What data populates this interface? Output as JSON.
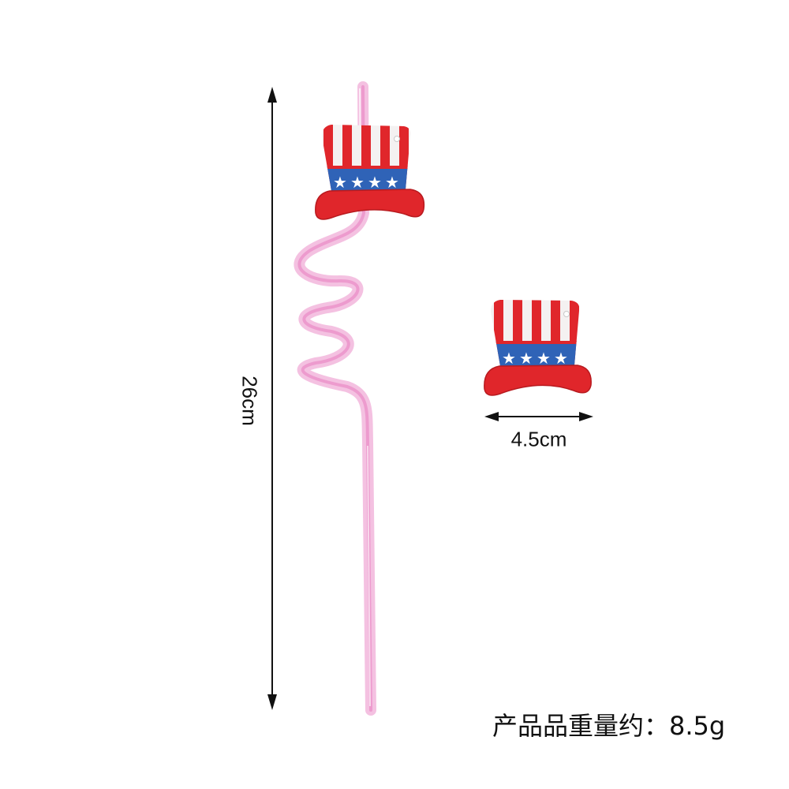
{
  "dimensions": {
    "straw_length": "26cm",
    "topper_width": "4.5cm"
  },
  "weight_note": "产品品重量约：8.5g",
  "colors": {
    "straw": "#f0a8d4",
    "hat_red": "#e0262b",
    "hat_white": "#f4f1f1",
    "hat_blue": "#2f63b7",
    "arrow": "#111111"
  }
}
